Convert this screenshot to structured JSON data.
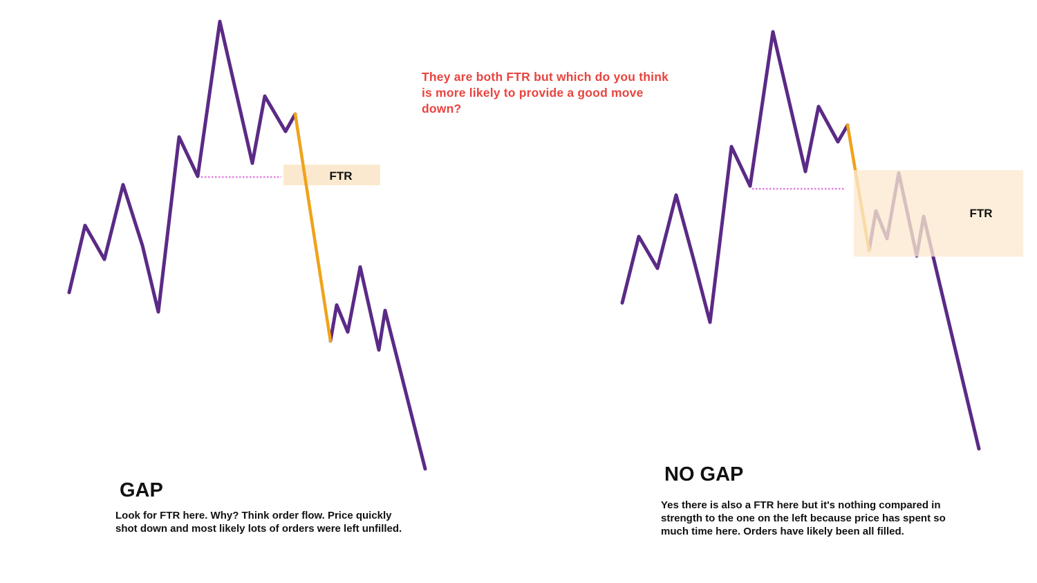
{
  "question": "They are both FTR but which do you think is more likely to provide a good move down?",
  "zone_label": "FTR",
  "colors": {
    "price_line": "#5b2a86",
    "impulse_leg": "#f0a21a",
    "zone_fill": "#fbe9cf",
    "dotted_level": "#e27fe0",
    "question_text": "#e8443f"
  },
  "left_panel": {
    "heading": "GAP",
    "desc_before": "Look for ",
    "desc_bold": "FTR",
    "desc_after": " here. Why? Think order flow. Price quickly shot down and most likely lots of orders were left unfilled."
  },
  "right_panel": {
    "heading": "NO GAP",
    "desc_before": "Yes there is also a ",
    "desc_bold": "FTR",
    "desc_after": " here but it's nothing compared in strength to the one on the left because price has spent so much time here. Orders have likely been all filled."
  }
}
